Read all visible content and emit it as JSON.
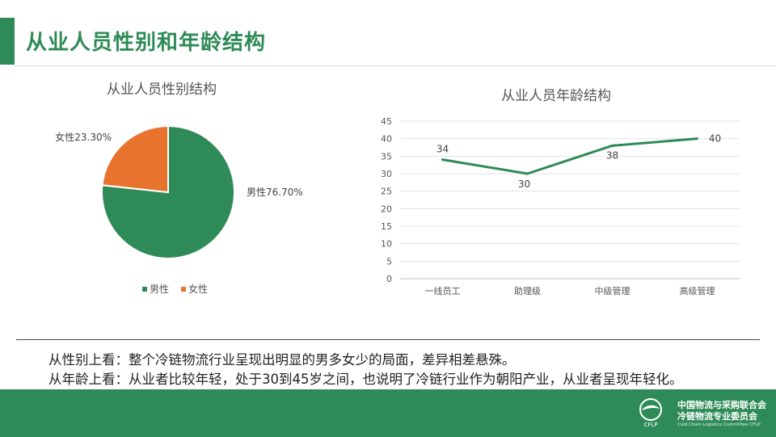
{
  "page": {
    "title": "从业人员性别和年龄结构",
    "summary_lines": [
      "从性别上看：整个冷链物流行业呈现出明显的男多女少的局面，差异相差悬殊。",
      "从年龄上看：从业者比较年轻，处于30到45岁之间，也说明了冷链行业作为朝阳产业，从业者呈现年轻化。"
    ]
  },
  "footer": {
    "org_line1": "中国物流与采购联合会",
    "org_line2": "冷链物流专业委员会",
    "org_english": "Cold Chain Logistics Committee CFLP",
    "logo_text": "CFLP"
  },
  "chart_data": [
    {
      "type": "pie",
      "title": "从业人员性别结构",
      "slices": [
        {
          "name": "男性",
          "value": 76.7,
          "label": "男性76.70%",
          "color": "#2e8b57"
        },
        {
          "name": "女性",
          "value": 23.3,
          "label": "女性23.30%",
          "color": "#e8732e"
        }
      ],
      "legend": [
        "男性",
        "女性"
      ],
      "legend_position": "bottom"
    },
    {
      "type": "line",
      "title": "从业人员年龄结构",
      "categories": [
        "一线员工",
        "助理级",
        "中级管理",
        "高级管理"
      ],
      "series": [
        {
          "values": [
            34,
            30,
            38,
            40
          ],
          "color": "#2e8b57"
        }
      ],
      "data_labels": [
        "34",
        "30",
        "38",
        "40"
      ],
      "ylim": [
        0,
        45
      ],
      "yticks": [
        "0",
        "5",
        "10",
        "15",
        "20",
        "25",
        "30",
        "35",
        "40",
        "45"
      ],
      "grid": true,
      "legend": false
    }
  ]
}
